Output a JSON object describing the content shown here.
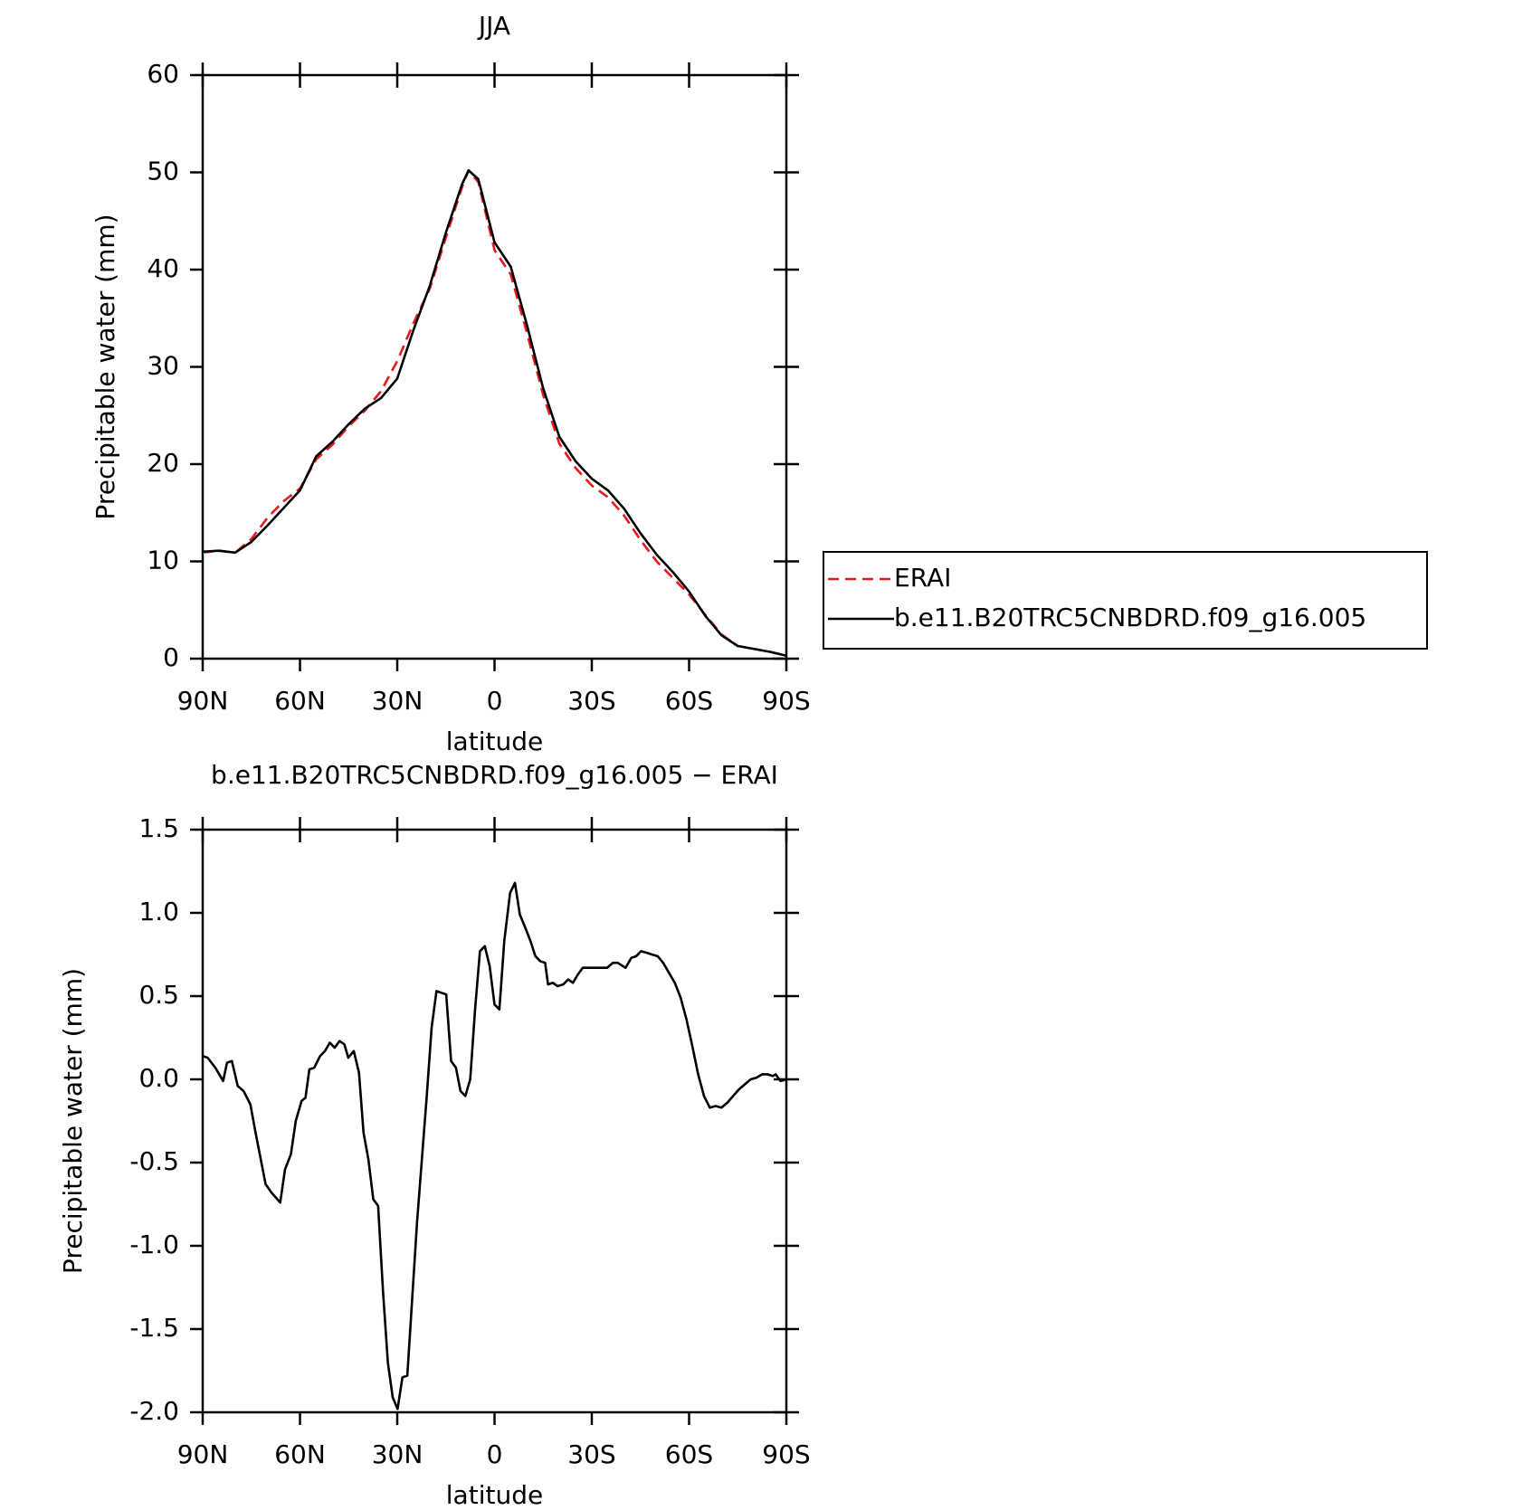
{
  "chart_data": [
    {
      "type": "line",
      "title": "JJA",
      "xlabel": "latitude",
      "ylabel": "Precipitable water (mm)",
      "x": [
        90,
        85,
        80,
        75,
        70,
        65,
        60,
        55,
        50,
        45,
        40,
        35,
        30,
        25,
        20,
        15,
        10,
        8,
        5,
        0,
        -5,
        -10,
        -15,
        -20,
        -25,
        -30,
        -35,
        -40,
        -45,
        -50,
        -55,
        -60,
        -65,
        -70,
        -75,
        -80,
        -85,
        -90
      ],
      "series": [
        {
          "name": "ERAI",
          "color": "#e8191c",
          "dash": true,
          "values": [
            10.9,
            11.1,
            10.9,
            12.3,
            14.5,
            16.2,
            17.5,
            20.5,
            22,
            23.9,
            25.5,
            27.5,
            30.6,
            34.5,
            38,
            43.3,
            48.5,
            50.2,
            49,
            42,
            39.5,
            33.5,
            27.1,
            22.1,
            19.6,
            17.8,
            16.6,
            14.7,
            12.2,
            10,
            8.3,
            6.6,
            4.5,
            2.5,
            1.3,
            1.0,
            0.7,
            0.3
          ]
        },
        {
          "name": "b.e11.B20TRC5CNBDRD.f09_g16.005",
          "color": "#000000",
          "dash": false,
          "values": [
            11,
            11.1,
            10.9,
            12,
            13.7,
            15.5,
            17.3,
            20.8,
            22.3,
            24.1,
            25.7,
            26.8,
            28.8,
            33.8,
            38.3,
            43.8,
            48.8,
            50.2,
            49.3,
            42.8,
            40.3,
            34.3,
            27.8,
            22.8,
            20.3,
            18.5,
            17.3,
            15.4,
            12.9,
            10.7,
            8.9,
            6.9,
            4.4,
            2.4,
            1.3,
            1.0,
            0.7,
            0.3
          ]
        }
      ],
      "xlim": [
        90,
        -90
      ],
      "xticks": [
        {
          "value": 90,
          "label": "90N"
        },
        {
          "value": 60,
          "label": "60N"
        },
        {
          "value": 30,
          "label": "30N"
        },
        0,
        {
          "value": -30,
          "label": "30S"
        },
        {
          "value": -60,
          "label": "60S"
        },
        {
          "value": -90,
          "label": "90S"
        }
      ],
      "ylim": [
        0,
        60
      ],
      "yticks": [
        0,
        10,
        20,
        30,
        40,
        50,
        60
      ],
      "legend": "right"
    },
    {
      "type": "line",
      "title": "b.e11.B20TRC5CNBDRD.f09_g16.005 − ERAI",
      "xlabel": "latitude",
      "ylabel": "Precipitable water (mm)",
      "x": [
        90,
        88.5,
        86.1,
        83.7,
        82.5,
        81,
        79.2,
        77.4,
        75.3,
        73.6,
        72.4,
        70.6,
        68.8,
        66.1,
        64.6,
        62.8,
        61.3,
        59.5,
        58.3,
        57.1,
        55.6,
        53.8,
        52.3,
        50.8,
        49.3,
        47.8,
        46.3,
        45.1,
        43.4,
        41.8,
        40.4,
        38.9,
        37.4,
        35.9,
        34.4,
        32.9,
        31.4,
        29.9,
        28.4,
        26.9,
        25.4,
        23.9,
        22.4,
        20.9,
        19.4,
        17.9,
        16.4,
        14.9,
        13.4,
        11.9,
        10.5,
        9.0,
        7.5,
        6.0,
        4.5,
        3.0,
        1.5,
        0,
        -1.5,
        -3.0,
        -4.8,
        -6.3,
        -7.8,
        -9.3,
        -11.1,
        -12.6,
        -14.1,
        -15.6,
        -16.5,
        -18.0,
        -19.4,
        -21.2,
        -22.7,
        -24.2,
        -25.7,
        -27.2,
        -29.3,
        -32.9,
        -34.7,
        -36.5,
        -38.0,
        -40.4,
        -42.2,
        -43.7,
        -45.2,
        -47.0,
        -48.5,
        -50.3,
        -52.0,
        -53.8,
        -55.6,
        -57.4,
        -59.2,
        -61.0,
        -62.8,
        -64.6,
        -66.4,
        -68.2,
        -70.0,
        -71.8,
        -73.6,
        -75.4,
        -77.2,
        -79.0,
        -80.8,
        -82.5,
        -84.3,
        -85.8,
        -86.7,
        -88.2,
        -90
      ],
      "series": [
        {
          "color": "#000000",
          "dash": false,
          "values": [
            0.14,
            0.13,
            0.07,
            -0.01,
            0.1,
            0.11,
            -0.04,
            -0.07,
            -0.15,
            -0.33,
            -0.45,
            -0.63,
            -0.68,
            -0.74,
            -0.54,
            -0.45,
            -0.25,
            -0.13,
            -0.11,
            0.06,
            0.07,
            0.14,
            0.17,
            0.22,
            0.19,
            0.23,
            0.21,
            0.13,
            0.17,
            0.04,
            -0.32,
            -0.48,
            -0.72,
            -0.76,
            -1.27,
            -1.7,
            -1.91,
            -1.98,
            -1.79,
            -1.78,
            -1.32,
            -0.86,
            -0.48,
            -0.1,
            0.31,
            0.53,
            0.52,
            0.51,
            0.11,
            0.07,
            -0.07,
            -0.1,
            0.0,
            0.42,
            0.77,
            0.8,
            0.68,
            0.45,
            0.42,
            0.83,
            1.12,
            1.18,
            0.99,
            0.92,
            0.83,
            0.74,
            0.71,
            0.7,
            0.57,
            0.58,
            0.56,
            0.57,
            0.6,
            0.58,
            0.63,
            0.67,
            0.67,
            0.67,
            0.67,
            0.7,
            0.7,
            0.67,
            0.73,
            0.74,
            0.77,
            0.76,
            0.75,
            0.74,
            0.7,
            0.64,
            0.58,
            0.49,
            0.36,
            0.2,
            0.03,
            -0.1,
            -0.17,
            -0.16,
            -0.17,
            -0.14,
            -0.1,
            -0.06,
            -0.03,
            0.0,
            0.01,
            0.03,
            0.03,
            0.02,
            0.03,
            -0.01,
            0.0
          ]
        }
      ],
      "xlim": [
        90,
        -90
      ],
      "xticks": [
        {
          "value": 90,
          "label": "90N"
        },
        {
          "value": 60,
          "label": "60N"
        },
        {
          "value": 30,
          "label": "30N"
        },
        0,
        {
          "value": -30,
          "label": "30S"
        },
        {
          "value": -60,
          "label": "60S"
        },
        {
          "value": -90,
          "label": "90S"
        }
      ],
      "ylim": [
        -2,
        1.5
      ],
      "yticks": [
        {
          "value": -2,
          "label": "-2.0"
        },
        -1.5,
        {
          "value": -1,
          "label": "-1.0"
        },
        -0.5,
        {
          "value": 0,
          "label": "0.0"
        },
        0.5,
        {
          "value": 1,
          "label": "1.0"
        },
        1.5
      ]
    }
  ]
}
